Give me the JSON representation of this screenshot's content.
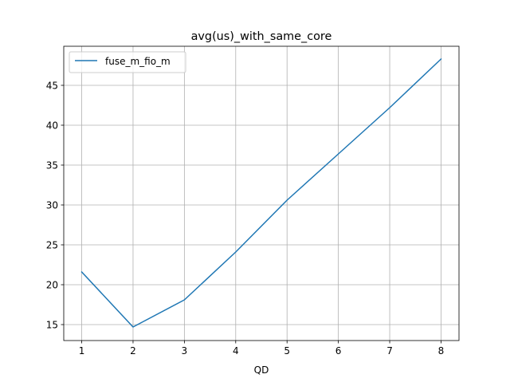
{
  "chart_data": {
    "type": "line",
    "title": "avg(us)_with_same_core",
    "xlabel": "QD",
    "ylabel": "",
    "x": [
      1,
      2,
      3,
      4,
      5,
      6,
      7,
      8
    ],
    "xticks": [
      "1",
      "2",
      "3",
      "4",
      "5",
      "6",
      "7",
      "8"
    ],
    "yticks": [
      "15",
      "20",
      "25",
      "30",
      "35",
      "40",
      "45"
    ],
    "xlim": [
      0.65,
      8.35
    ],
    "ylim": [
      13.0,
      49.9
    ],
    "grid": true,
    "legend_position": "top-left",
    "series": [
      {
        "name": "fuse_m_fio_m",
        "color": "#1f77b4",
        "values": [
          21.6,
          14.7,
          18.1,
          24.1,
          30.6,
          36.4,
          42.2,
          48.3
        ]
      }
    ]
  }
}
